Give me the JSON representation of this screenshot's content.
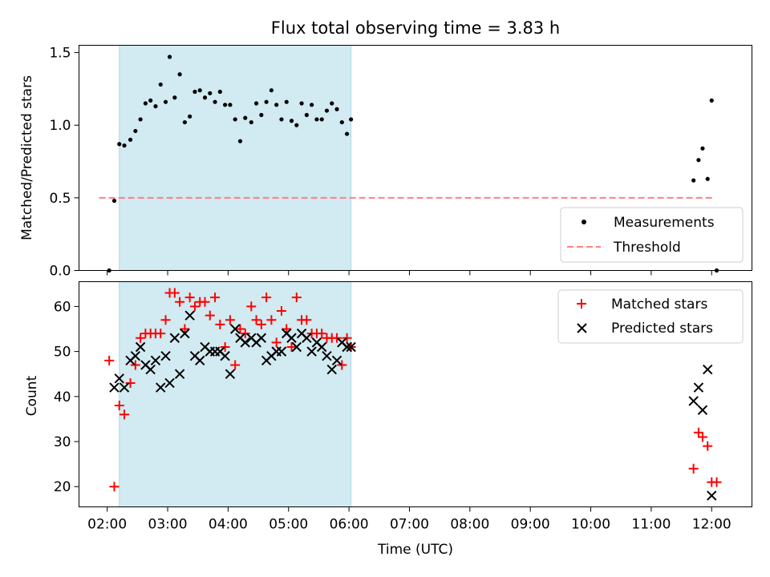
{
  "chart_data": [
    {
      "type": "scatter",
      "title": "Flux total observing time = 3.83 h",
      "ylabel": "Matched/Predicted stars",
      "xlim": [
        "01:32",
        "12:40"
      ],
      "ylim": [
        0,
        1.55
      ],
      "yticks": [
        0.0,
        0.5,
        1.0,
        1.5
      ],
      "ytick_labels": [
        "0.0",
        "0.5",
        "1.0",
        "1.5"
      ],
      "shaded_interval": [
        "02:12",
        "06:02"
      ],
      "legend_position": "lower-right",
      "series": [
        {
          "name": "Measurements",
          "marker": "dot",
          "color": "#000000",
          "x": [
            "02:02",
            "02:07",
            "02:12",
            "02:17",
            "02:23",
            "02:28",
            "02:33",
            "02:38",
            "02:43",
            "02:48",
            "02:53",
            "02:58",
            "03:02",
            "03:07",
            "03:12",
            "03:17",
            "03:22",
            "03:27",
            "03:32",
            "03:37",
            "03:42",
            "03:47",
            "03:52",
            "03:57",
            "04:02",
            "04:07",
            "04:12",
            "04:17",
            "04:23",
            "04:28",
            "04:33",
            "04:38",
            "04:43",
            "04:48",
            "04:53",
            "04:58",
            "05:03",
            "05:08",
            "05:13",
            "05:18",
            "05:23",
            "05:28",
            "05:33",
            "05:38",
            "05:43",
            "05:48",
            "05:53",
            "05:58",
            "06:02",
            "11:42",
            "11:47",
            "11:51",
            "11:56",
            "12:00",
            "12:05"
          ],
          "y": [
            0.0,
            0.48,
            0.87,
            0.86,
            0.9,
            0.96,
            1.04,
            1.15,
            1.17,
            1.13,
            1.28,
            1.16,
            1.47,
            1.19,
            1.35,
            1.02,
            1.06,
            1.23,
            1.24,
            1.19,
            1.22,
            1.16,
            1.23,
            1.14,
            1.14,
            1.04,
            0.89,
            1.05,
            1.02,
            1.15,
            1.07,
            1.16,
            1.24,
            1.14,
            1.04,
            1.16,
            1.03,
            1.0,
            1.15,
            1.07,
            1.14,
            1.04,
            1.04,
            1.1,
            1.15,
            1.11,
            1.02,
            0.94,
            1.04,
            0.62,
            0.76,
            0.84,
            0.63,
            1.17,
            0.0
          ]
        },
        {
          "name": "Threshold",
          "line": "dashed",
          "color": "#ff8080",
          "x": [
            "01:52",
            "12:02"
          ],
          "y": [
            0.5,
            0.5
          ]
        }
      ]
    },
    {
      "type": "scatter",
      "xlabel": "Time (UTC)",
      "ylabel": "Count",
      "xlim": [
        "01:32",
        "12:40"
      ],
      "ylim": [
        15.5,
        65.5
      ],
      "yticks": [
        20,
        30,
        40,
        50,
        60
      ],
      "ytick_labels": [
        "20",
        "30",
        "40",
        "50",
        "60"
      ],
      "xtick_labels": [
        "02:00",
        "03:00",
        "04:00",
        "05:00",
        "06:00",
        "07:00",
        "08:00",
        "09:00",
        "10:00",
        "11:00",
        "12:00"
      ],
      "shaded_interval": [
        "02:12",
        "06:02"
      ],
      "legend_position": "upper-right",
      "series": [
        {
          "name": "Matched stars",
          "marker": "plus",
          "color": "#ff0000",
          "x": [
            "02:02",
            "02:07",
            "02:12",
            "02:17",
            "02:23",
            "02:28",
            "02:33",
            "02:38",
            "02:43",
            "02:48",
            "02:53",
            "02:58",
            "03:02",
            "03:07",
            "03:12",
            "03:17",
            "03:22",
            "03:27",
            "03:32",
            "03:37",
            "03:42",
            "03:47",
            "03:52",
            "03:57",
            "04:02",
            "04:07",
            "04:12",
            "04:17",
            "04:23",
            "04:28",
            "04:33",
            "04:38",
            "04:43",
            "04:48",
            "04:53",
            "04:58",
            "05:03",
            "05:08",
            "05:13",
            "05:18",
            "05:23",
            "05:28",
            "05:33",
            "05:38",
            "05:43",
            "05:48",
            "05:53",
            "05:58",
            "06:02",
            "11:42",
            "11:47",
            "11:51",
            "11:56",
            "12:00",
            "12:05"
          ],
          "y": [
            48,
            20,
            38,
            36,
            43,
            47,
            53,
            54,
            54,
            54,
            54,
            57,
            63,
            63,
            61,
            55,
            62,
            60,
            61,
            61,
            58,
            62,
            56,
            51,
            57,
            47,
            55,
            54,
            60,
            57,
            56,
            62,
            57,
            52,
            59,
            55,
            51,
            62,
            57,
            57,
            54,
            54,
            54,
            53,
            53,
            53,
            47,
            53,
            51,
            24,
            32,
            31,
            29,
            21,
            21
          ]
        },
        {
          "name": "Predicted stars",
          "marker": "x",
          "color": "#000000",
          "x": [
            "02:07",
            "02:12",
            "02:17",
            "02:23",
            "02:28",
            "02:33",
            "02:38",
            "02:43",
            "02:48",
            "02:53",
            "02:58",
            "03:02",
            "03:07",
            "03:12",
            "03:17",
            "03:22",
            "03:27",
            "03:32",
            "03:37",
            "03:42",
            "03:47",
            "03:52",
            "03:57",
            "04:02",
            "04:07",
            "04:12",
            "04:17",
            "04:23",
            "04:28",
            "04:33",
            "04:38",
            "04:43",
            "04:48",
            "04:53",
            "04:58",
            "05:03",
            "05:08",
            "05:13",
            "05:18",
            "05:23",
            "05:28",
            "05:33",
            "05:38",
            "05:43",
            "05:48",
            "05:53",
            "05:58",
            "06:02",
            "11:42",
            "11:47",
            "11:51",
            "11:56",
            "12:00"
          ],
          "y": [
            42,
            44,
            42,
            48,
            49,
            51,
            47,
            46,
            48,
            42,
            49,
            43,
            53,
            45,
            54,
            58,
            49,
            48,
            51,
            50,
            50,
            50,
            49,
            45,
            55,
            53,
            52,
            53,
            52,
            53,
            48,
            49,
            50,
            50,
            54,
            53,
            51,
            54,
            53,
            50,
            52,
            51,
            49,
            46,
            48,
            52,
            51,
            51,
            39,
            42,
            37,
            46,
            18
          ]
        }
      ]
    }
  ]
}
